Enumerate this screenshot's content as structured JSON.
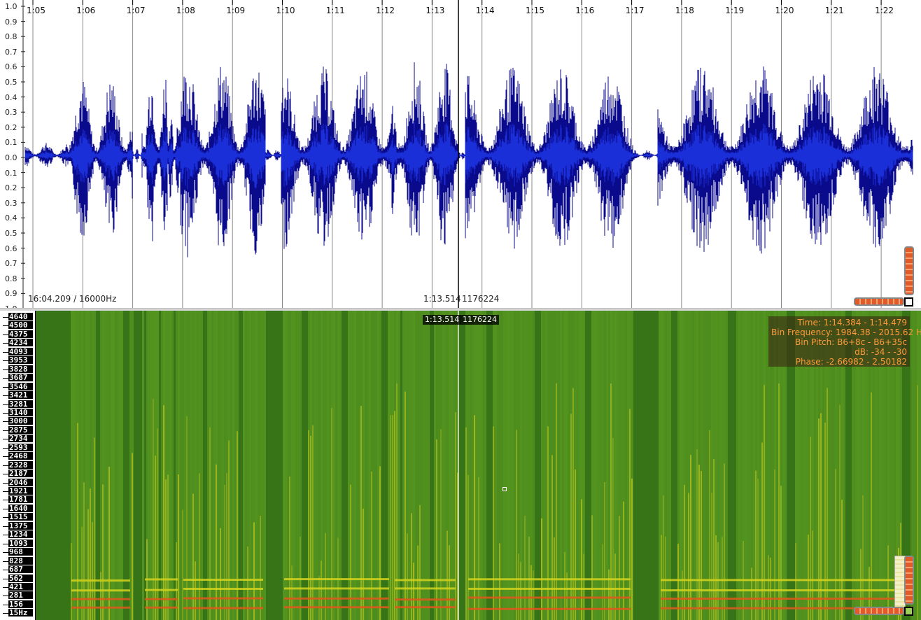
{
  "waveform": {
    "amplitude_labels": [
      "1.0",
      "0.9",
      "0.8",
      "0.7",
      "0.6",
      "0.5",
      "0.4",
      "0.3",
      "0.2",
      "0.1",
      "0.0",
      "0.1",
      "0.2",
      "0.3",
      "0.4",
      "0.5",
      "0.6",
      "0.7",
      "0.8",
      "0.9",
      "1.0"
    ],
    "time_labels": [
      "1:05",
      "1:06",
      "1:07",
      "1:08",
      "1:09",
      "1:10",
      "1:11",
      "1:12",
      "1:13",
      "1:14",
      "1:15",
      "1:16",
      "1:17",
      "1:18",
      "1:19",
      "1:20",
      "1:21",
      "1:22"
    ],
    "duration_rate": "16:04.209 / 16000Hz",
    "cursor_time": "1:13.514",
    "cursor_frame": "1176224",
    "wave_color": "#0a0a8c",
    "wave_fill_color": "#1a2fd8"
  },
  "spectrogram": {
    "freq_labels": [
      "4640",
      "4500",
      "4375",
      "4234",
      "4093",
      "3953",
      "3828",
      "3687",
      "3546",
      "3421",
      "3281",
      "3140",
      "3000",
      "2875",
      "2734",
      "2593",
      "2468",
      "2328",
      "2187",
      "2046",
      "1921",
      "1781",
      "1640",
      "1515",
      "1375",
      "1234",
      "1093",
      "968",
      "828",
      "687",
      "562",
      "421",
      "281",
      "156",
      "15Hz"
    ],
    "cursor_time": "1:13.514",
    "cursor_frame": "1176224",
    "info": {
      "time": "Time: 1:14.384 - 1:14.479",
      "bin_frequency": "Bin Frequency: 1984.38 - 2015.62 Hz",
      "bin_pitch": "Bin Pitch: B6+8c - B6+35c",
      "db": "dB: -34 - -30",
      "phase": "Phase: -2.66982 - 2.50182"
    },
    "colors": {
      "background": "#4a8a1d",
      "harmonic": "#d4d21c",
      "hot": "#e0581c",
      "dark": "#2f6a16"
    }
  }
}
